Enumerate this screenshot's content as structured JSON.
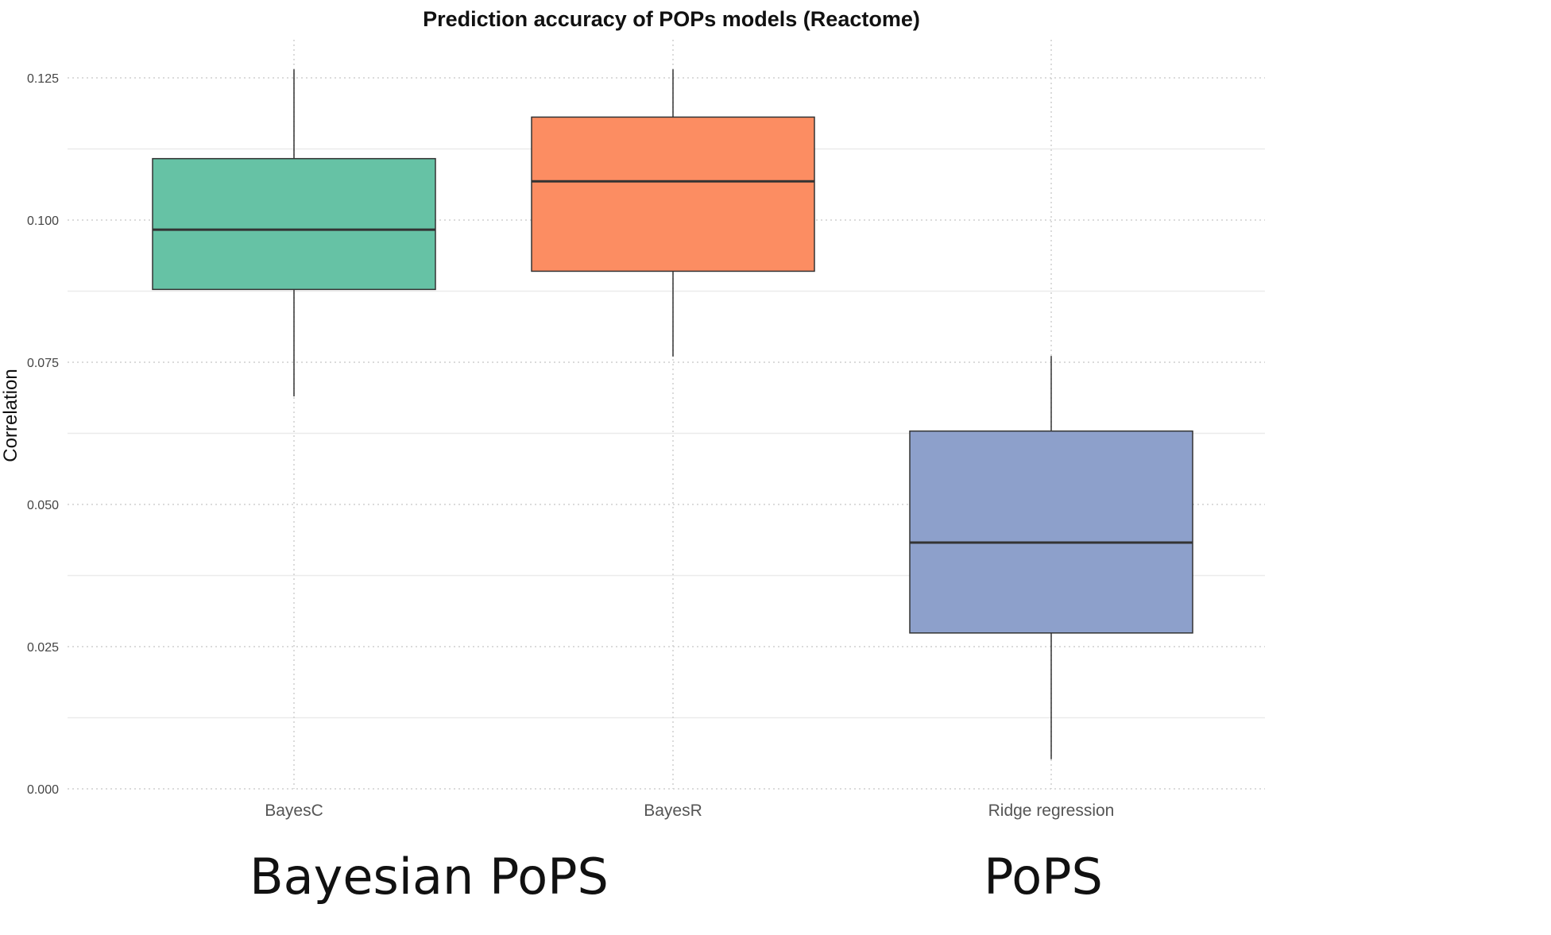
{
  "chart_data": {
    "type": "boxplot",
    "title": "Prediction accuracy of POPs models (Reactome)",
    "xlabel": "",
    "ylabel": "Correlation",
    "ylim": [
      0.0,
      0.125
    ],
    "yticks": [
      "0.000",
      "0.025",
      "0.050",
      "0.075",
      "0.100",
      "0.125"
    ],
    "ytick_values": [
      0.0,
      0.025,
      0.05,
      0.075,
      0.1,
      0.125
    ],
    "grid": true,
    "categories": [
      "BayesC",
      "BayesR",
      "Ridge regression"
    ],
    "boxes": [
      {
        "category": "BayesC",
        "whisker_low": 0.069,
        "q1": 0.0878,
        "median": 0.0983,
        "q3": 0.1108,
        "whisker_high": 0.1265,
        "color": "#66c2a5"
      },
      {
        "category": "BayesR",
        "whisker_low": 0.076,
        "q1": 0.091,
        "median": 0.1068,
        "q3": 0.1181,
        "whisker_high": 0.1265,
        "color": "#fc8d62"
      },
      {
        "category": "Ridge regression",
        "whisker_low": 0.0052,
        "q1": 0.0274,
        "median": 0.0433,
        "q3": 0.0629,
        "whisker_high": 0.0761,
        "color": "#8da0cb"
      }
    ],
    "group_labels": [
      {
        "text": "Bayesian PoPS",
        "covers": [
          "BayesC",
          "BayesR"
        ]
      },
      {
        "text": "PoPS",
        "covers": [
          "Ridge regression"
        ]
      }
    ]
  }
}
